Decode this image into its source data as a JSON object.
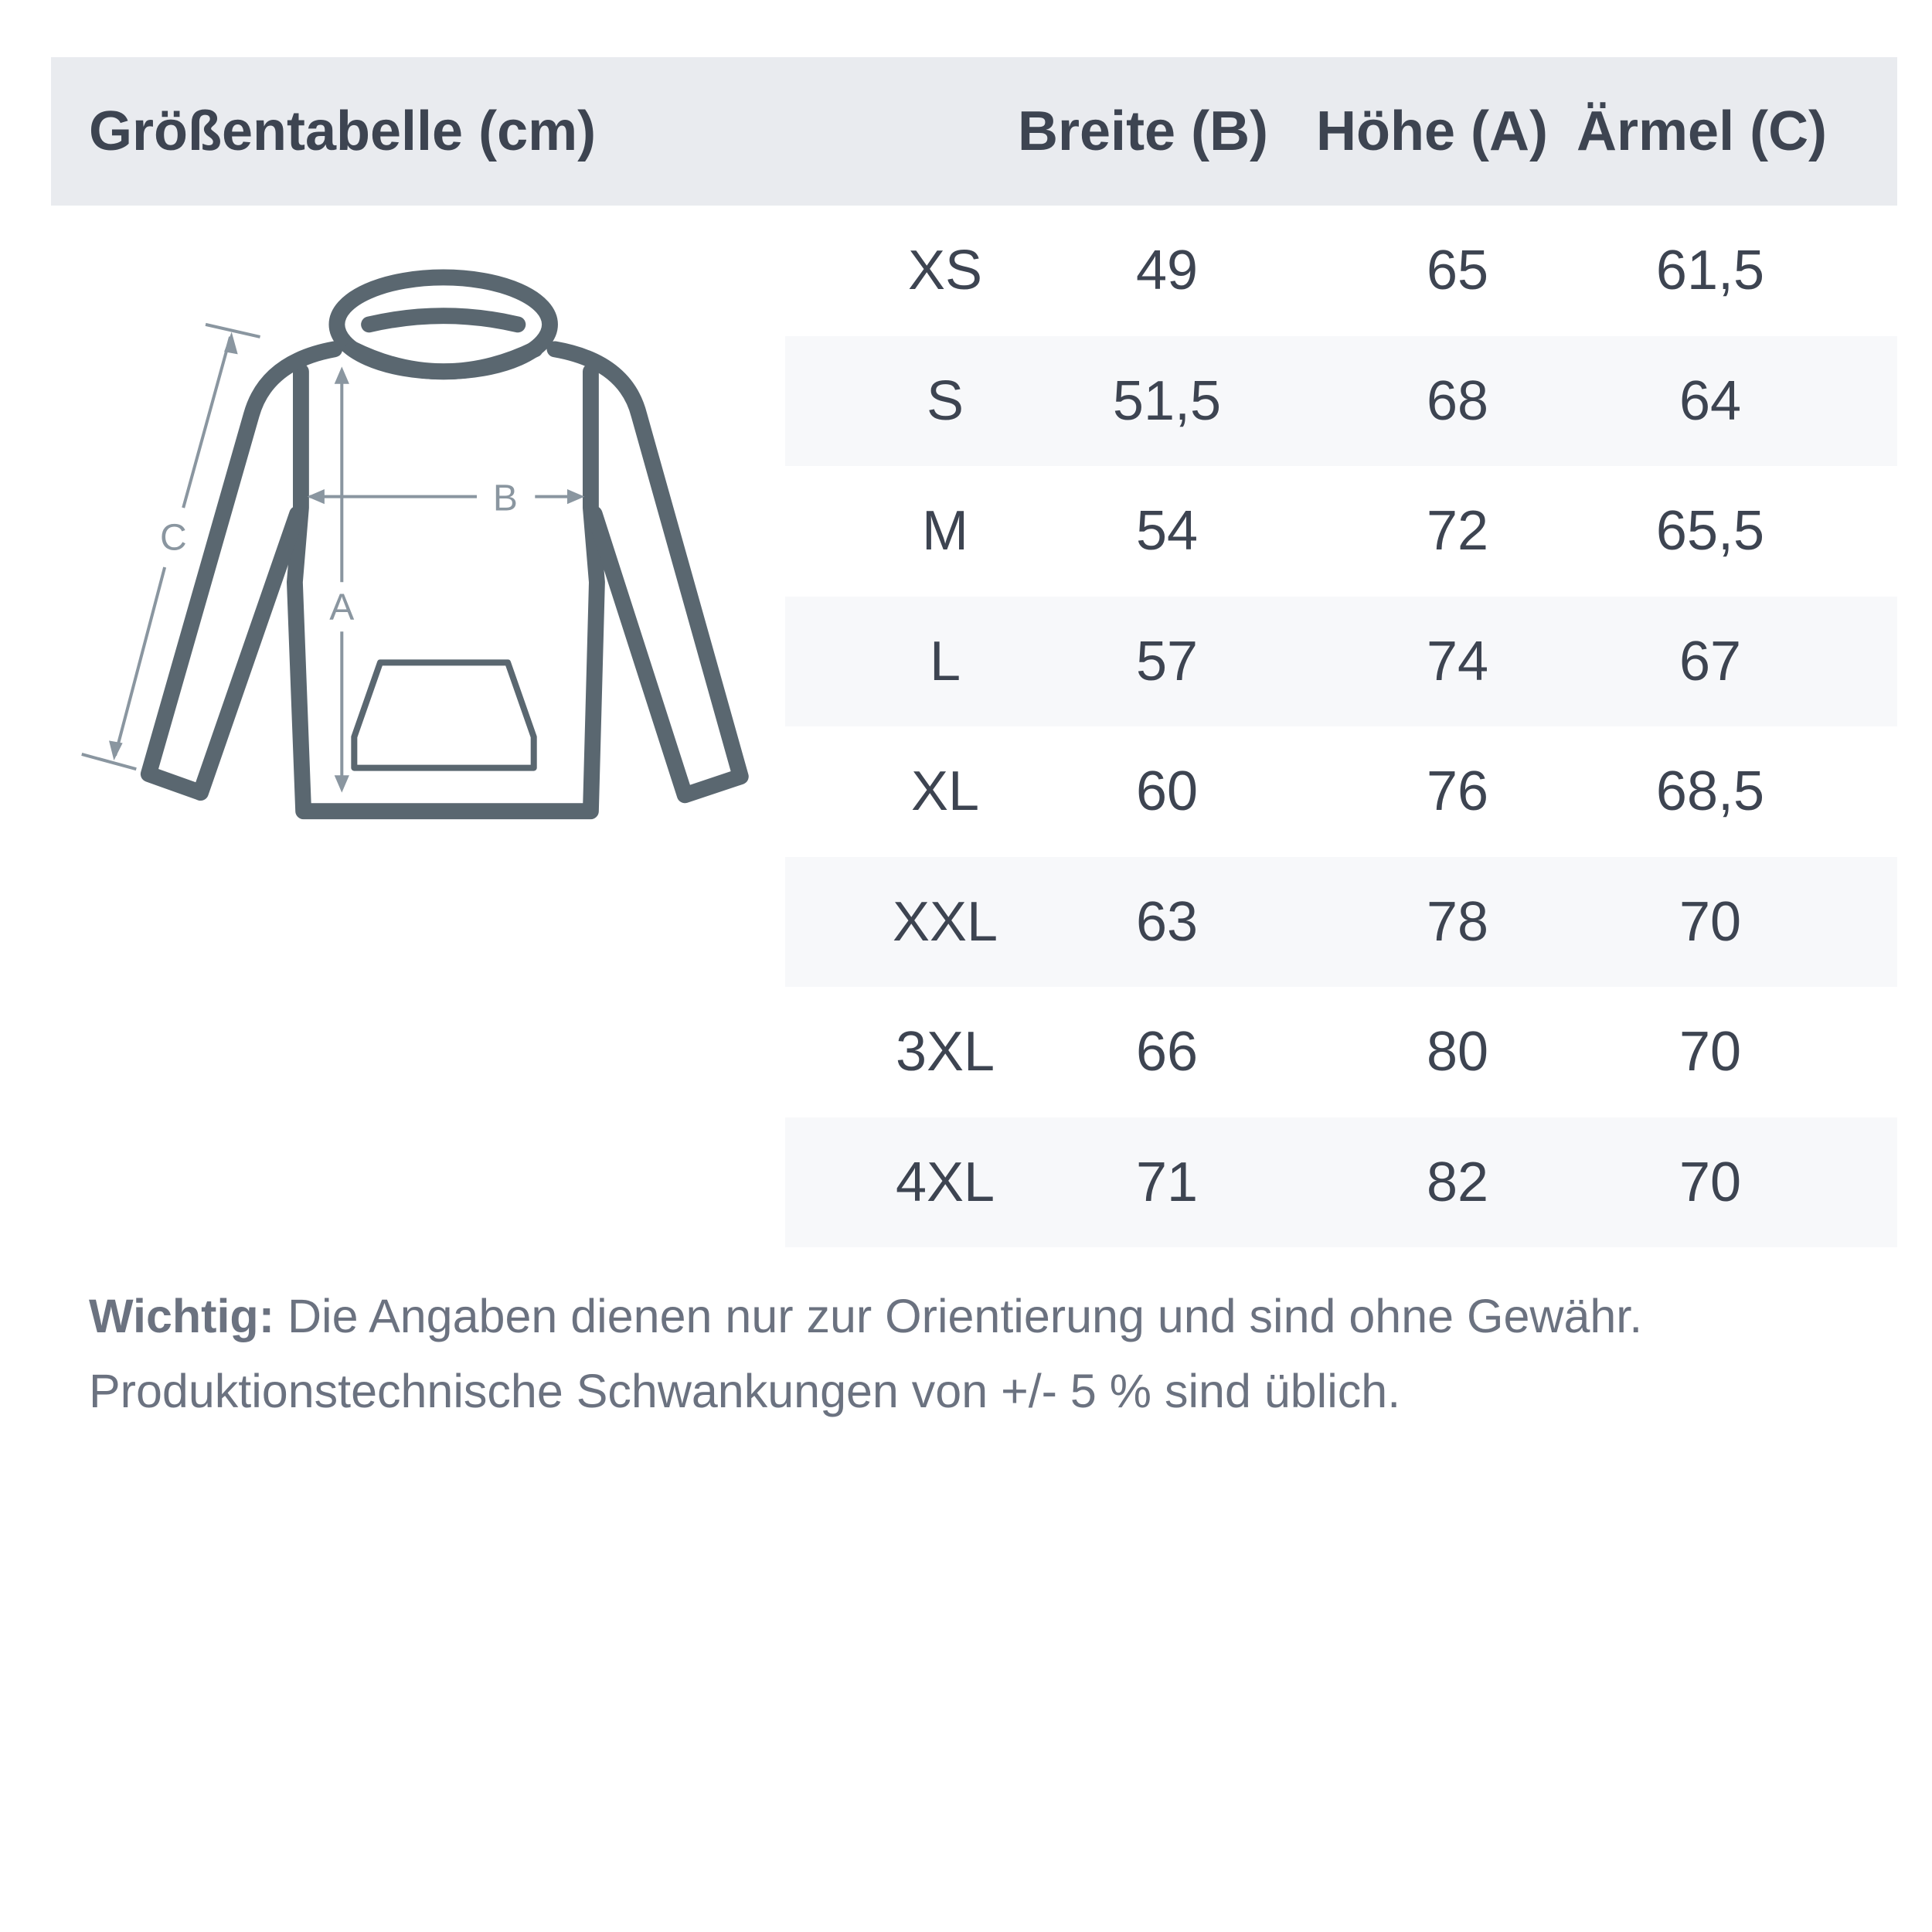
{
  "header": {
    "title": "Größentabelle (cm)",
    "columns": [
      "Breite (B)",
      "Höhe (A)",
      "Ärmel (C)"
    ]
  },
  "diagram": {
    "labels": {
      "width": "B",
      "height": "A",
      "sleeve": "C"
    },
    "outline_color": "#5a6770",
    "measure_color": "#8a96a0"
  },
  "rows": [
    {
      "size": "XS",
      "breite": "49",
      "hoehe": "65",
      "aermel": "61,5"
    },
    {
      "size": "S",
      "breite": "51,5",
      "hoehe": "68",
      "aermel": "64"
    },
    {
      "size": "M",
      "breite": "54",
      "hoehe": "72",
      "aermel": "65,5"
    },
    {
      "size": "L",
      "breite": "57",
      "hoehe": "74",
      "aermel": "67"
    },
    {
      "size": "XL",
      "breite": "60",
      "hoehe": "76",
      "aermel": "68,5"
    },
    {
      "size": "XXL",
      "breite": "63",
      "hoehe": "78",
      "aermel": "70"
    },
    {
      "size": "3XL",
      "breite": "66",
      "hoehe": "80",
      "aermel": "70"
    },
    {
      "size": "4XL",
      "breite": "71",
      "hoehe": "82",
      "aermel": "70"
    }
  ],
  "note": {
    "label": "Wichtig:",
    "line1": " Die Angaben dienen nur zur Orientierung und sind ohne Gewähr.",
    "line2": "Produktionstechnische Schwankungen von +/- 5 % sind üblich."
  }
}
